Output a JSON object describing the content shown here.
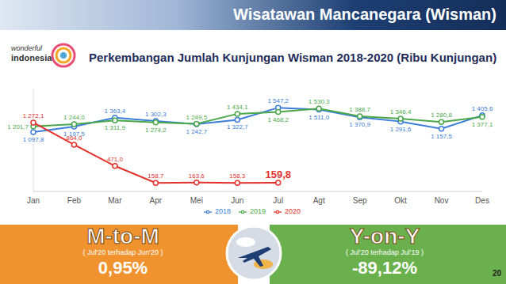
{
  "header": {
    "title": "Wisatawan Mancanegara (Wisman)",
    "logo": [
      "wonderful",
      "indonesia"
    ],
    "page": "20"
  },
  "chart_data": {
    "type": "line",
    "title": "Perkembangan Jumlah Kunjungan Wisman 2018-2020 (Ribu Kunjungan)",
    "categories": [
      "Jan",
      "Feb",
      "Mar",
      "Apr",
      "Mei",
      "Jun",
      "Jul",
      "Agt",
      "Sep",
      "Okt",
      "Nov",
      "Des"
    ],
    "series": [
      {
        "name": "2018",
        "color": "#3b7dd8",
        "marker": "circle",
        "values": [
          1097.8,
          1197.5,
          1363.4,
          1302.3,
          1242.7,
          1322.7,
          1547.2,
          1511.0,
          1370.9,
          1291.6,
          1157.5,
          1405.6
        ],
        "value_labels": [
          "1 097,8",
          "1 197,5",
          "1 363,4",
          "1 302,3",
          "1 242,7",
          "1 322,7",
          "1 547,2",
          "1 511,0",
          "1 370,9",
          "1 291,6",
          "1 157,5",
          "1 405,6"
        ]
      },
      {
        "name": "2019",
        "color": "#4aa84a",
        "marker": "circle",
        "values": [
          1201.7,
          1244.0,
          1311.9,
          1274.2,
          1249.5,
          1434.1,
          1468.2,
          1530.3,
          1388.7,
          1346.4,
          1280.8,
          1377.1
        ],
        "value_labels": [
          "1 201,7",
          "1 244,0",
          "1 311,9",
          "1 274,2",
          "1 249,5",
          "1 434,1",
          "1 468,2",
          "1 530,3",
          "1 388,7",
          "1 346,4",
          "1 280,8",
          "1 377,1"
        ]
      },
      {
        "name": "2020",
        "color": "#e3312b",
        "marker": "circle",
        "values": [
          1272.1,
          864.0,
          471.0,
          158.7,
          163.6,
          158.3,
          159.8,
          null,
          null,
          null,
          null,
          null
        ],
        "value_labels": [
          "1 272,1",
          "864,0",
          "471,0",
          "158,7",
          "163,6",
          "158,3",
          "159,8",
          null,
          null,
          null,
          null,
          null
        ]
      }
    ],
    "ylim": [
      0,
      1900
    ],
    "yticks": [],
    "tick_labels": "x",
    "data_labels": true,
    "legend": "bottom",
    "grid": false
  },
  "panels": [
    {
      "title": "M-to-M",
      "subtitle": "( Jul'20 terhadap Jun'20 )",
      "value": "0,95%",
      "color": "#f0922e"
    },
    {
      "title": "Y-on-Y",
      "subtitle": "( Jul'20 terhadap Jul'19 )",
      "value": "-89,12%",
      "color": "#6ab04c"
    }
  ]
}
